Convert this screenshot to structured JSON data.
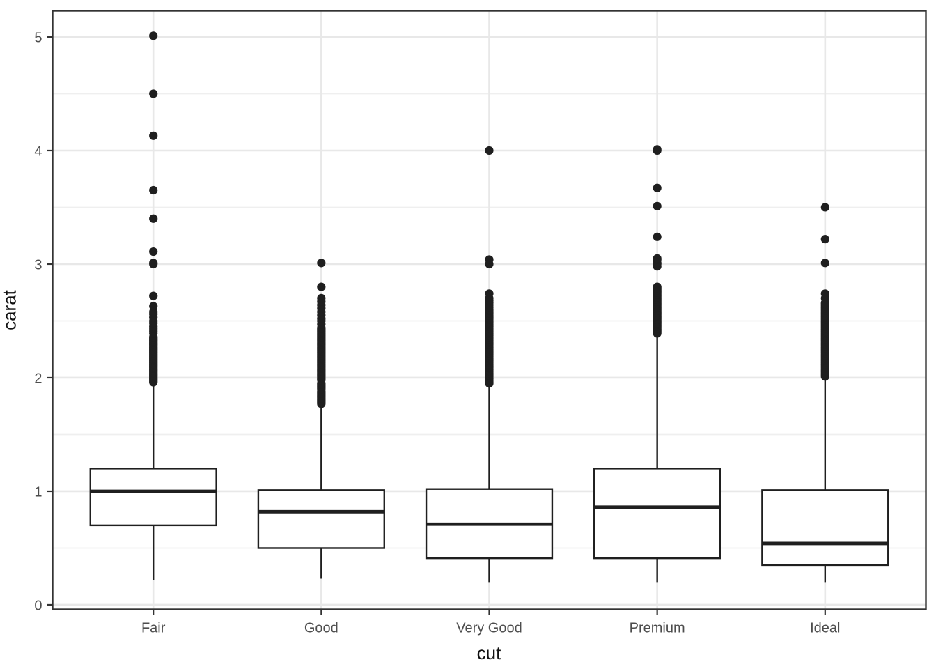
{
  "chart_data": {
    "type": "boxplot",
    "title": "",
    "xlabel": "cut",
    "ylabel": "carat",
    "categories": [
      "Fair",
      "Good",
      "Very Good",
      "Premium",
      "Ideal"
    ],
    "y_axis": {
      "tick_labels": [
        "0",
        "1",
        "2",
        "3",
        "4",
        "5"
      ],
      "ticks": [
        0,
        1,
        2,
        3,
        4,
        5
      ],
      "minor_ticks": [
        0.5,
        1.5,
        2.5,
        3.5,
        4.5
      ],
      "range": [
        -0.04,
        5.23
      ]
    },
    "grid": "major and minor horizontal, major vertical per category",
    "legend_position": "none",
    "groups": [
      {
        "name": "Fair",
        "q1": 0.7,
        "median": 1.0,
        "q3": 1.2,
        "whisker_low": 0.22,
        "whisker_high": 1.95,
        "outliers": [
          1.96,
          1.97,
          1.98,
          1.99,
          2.0,
          2.01,
          2.02,
          2.03,
          2.04,
          2.05,
          2.06,
          2.07,
          2.08,
          2.09,
          2.1,
          2.11,
          2.12,
          2.13,
          2.14,
          2.15,
          2.16,
          2.17,
          2.18,
          2.19,
          2.2,
          2.21,
          2.22,
          2.23,
          2.24,
          2.25,
          2.26,
          2.27,
          2.28,
          2.29,
          2.3,
          2.31,
          2.32,
          2.33,
          2.34,
          2.35,
          2.36,
          2.39,
          2.41,
          2.43,
          2.45,
          2.48,
          2.5,
          2.53,
          2.56,
          2.58,
          2.63,
          2.72,
          3.0,
          3.01,
          3.11,
          3.4,
          3.65,
          4.13,
          4.5,
          5.01
        ]
      },
      {
        "name": "Good",
        "q1": 0.5,
        "median": 0.82,
        "q3": 1.01,
        "whisker_low": 0.23,
        "whisker_high": 1.76,
        "outliers": [
          1.77,
          1.78,
          1.79,
          1.8,
          1.81,
          1.82,
          1.83,
          1.84,
          1.85,
          1.86,
          1.87,
          1.88,
          1.9,
          1.91,
          1.92,
          1.93,
          1.94,
          1.95,
          1.98,
          1.99,
          2.0,
          2.01,
          2.02,
          2.03,
          2.04,
          2.05,
          2.06,
          2.07,
          2.08,
          2.09,
          2.1,
          2.11,
          2.12,
          2.13,
          2.14,
          2.15,
          2.16,
          2.17,
          2.18,
          2.19,
          2.2,
          2.21,
          2.22,
          2.23,
          2.24,
          2.25,
          2.26,
          2.27,
          2.28,
          2.29,
          2.3,
          2.31,
          2.32,
          2.33,
          2.34,
          2.35,
          2.36,
          2.37,
          2.38,
          2.39,
          2.4,
          2.41,
          2.42,
          2.43,
          2.44,
          2.47,
          2.5,
          2.52,
          2.55,
          2.58,
          2.61,
          2.64,
          2.67,
          2.7,
          2.8,
          3.01
        ]
      },
      {
        "name": "Very Good",
        "q1": 0.41,
        "median": 0.71,
        "q3": 1.02,
        "whisker_low": 0.2,
        "whisker_high": 1.92,
        "outliers": [
          1.95,
          1.96,
          1.97,
          1.98,
          1.99,
          2.0,
          2.01,
          2.02,
          2.03,
          2.04,
          2.05,
          2.06,
          2.07,
          2.08,
          2.09,
          2.1,
          2.11,
          2.12,
          2.13,
          2.14,
          2.15,
          2.16,
          2.17,
          2.18,
          2.19,
          2.2,
          2.21,
          2.22,
          2.23,
          2.24,
          2.25,
          2.26,
          2.27,
          2.28,
          2.29,
          2.3,
          2.31,
          2.32,
          2.33,
          2.34,
          2.35,
          2.36,
          2.37,
          2.38,
          2.39,
          2.4,
          2.41,
          2.42,
          2.43,
          2.44,
          2.45,
          2.46,
          2.47,
          2.48,
          2.49,
          2.5,
          2.51,
          2.52,
          2.53,
          2.54,
          2.55,
          2.56,
          2.57,
          2.58,
          2.59,
          2.6,
          2.62,
          2.64,
          2.66,
          2.68,
          2.7,
          2.74,
          3.0,
          3.04,
          4.0
        ]
      },
      {
        "name": "Premium",
        "q1": 0.41,
        "median": 0.86,
        "q3": 1.2,
        "whisker_low": 0.2,
        "whisker_high": 2.38,
        "outliers": [
          2.39,
          2.4,
          2.41,
          2.42,
          2.43,
          2.44,
          2.45,
          2.46,
          2.47,
          2.48,
          2.49,
          2.5,
          2.51,
          2.52,
          2.53,
          2.54,
          2.55,
          2.56,
          2.57,
          2.58,
          2.59,
          2.6,
          2.61,
          2.62,
          2.63,
          2.64,
          2.65,
          2.66,
          2.67,
          2.68,
          2.69,
          2.7,
          2.71,
          2.72,
          2.73,
          2.74,
          2.75,
          2.76,
          2.77,
          2.78,
          2.79,
          2.8,
          2.98,
          3.0,
          3.01,
          3.04,
          3.05,
          3.24,
          3.51,
          3.67,
          4.0,
          4.01
        ]
      },
      {
        "name": "Ideal",
        "q1": 0.35,
        "median": 0.54,
        "q3": 1.01,
        "whisker_low": 0.2,
        "whisker_high": 2.0,
        "outliers": [
          2.01,
          2.02,
          2.03,
          2.04,
          2.05,
          2.06,
          2.07,
          2.08,
          2.09,
          2.1,
          2.11,
          2.12,
          2.13,
          2.14,
          2.15,
          2.16,
          2.17,
          2.18,
          2.19,
          2.2,
          2.21,
          2.22,
          2.23,
          2.24,
          2.25,
          2.26,
          2.27,
          2.28,
          2.29,
          2.3,
          2.31,
          2.32,
          2.33,
          2.34,
          2.35,
          2.36,
          2.37,
          2.38,
          2.39,
          2.4,
          2.41,
          2.42,
          2.43,
          2.44,
          2.45,
          2.46,
          2.47,
          2.48,
          2.49,
          2.5,
          2.51,
          2.52,
          2.53,
          2.54,
          2.55,
          2.56,
          2.57,
          2.58,
          2.59,
          2.6,
          2.61,
          2.62,
          2.63,
          2.64,
          2.65,
          2.66,
          2.7,
          2.74,
          3.01,
          3.22,
          3.5
        ]
      }
    ],
    "colors": {
      "stroke": "#1f1f1f",
      "box_fill": "#ffffff",
      "panel_border": "#333333",
      "grid_major": "#e8e8e8",
      "grid_minor": "#efefef",
      "tick_mark": "#333333",
      "tick_text": "#4d4d4d",
      "title_text": "#111111",
      "background": "#ffffff"
    }
  }
}
